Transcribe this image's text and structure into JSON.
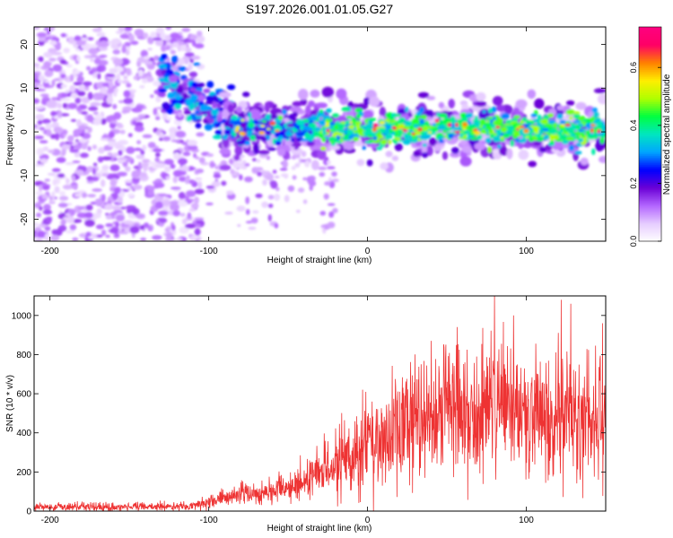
{
  "title": "S197.2026.001.01.05.G27",
  "chart_data": [
    {
      "type": "heatmap",
      "name": "spectrogram",
      "xlabel": "Height of straight line (km)",
      "ylabel": "Frequency (Hz)",
      "xlim": [
        -210,
        150
      ],
      "ylim": [
        -25,
        24
      ],
      "xticks": [
        -200,
        -100,
        0,
        100
      ],
      "yticks": [
        -20,
        -10,
        0,
        10,
        20
      ],
      "colorbar": {
        "label": "Normalized spectral amplitude",
        "range": [
          0.0,
          0.74
        ],
        "ticks": [
          0.0,
          0.2,
          0.4,
          0.6
        ],
        "tick_labels": [
          "0.0",
          "0.2",
          "0.4",
          "0.6"
        ],
        "colors": [
          "#ffffff",
          "#e6ccff",
          "#b366ff",
          "#6a00d6",
          "#0000ff",
          "#00a6ff",
          "#00e6c0",
          "#00ff40",
          "#b0ff00",
          "#ffee00",
          "#ff8000",
          "#ff0066",
          "#ff0080"
        ]
      },
      "description_regions": [
        {
          "x_range": [
            -210,
            -105
          ],
          "freq_range": [
            -25,
            24
          ],
          "level": "low (0.05–0.15)",
          "pattern": "scattered noise"
        },
        {
          "x_range": [
            -130,
            -90
          ],
          "freq_range": [
            5,
            14
          ],
          "level": "moderate (0.2–0.35)",
          "pattern": "ridge descending toward 0 Hz"
        },
        {
          "x_range": [
            -90,
            150
          ],
          "freq_range": [
            -4,
            4
          ],
          "level": "high (0.3–0.7)",
          "pattern": "band centered near 0–1 Hz"
        }
      ]
    },
    {
      "type": "line",
      "name": "snr",
      "xlabel": "Height of straight line (km)",
      "ylabel": "SNR (10 * v/v)",
      "xlim": [
        -210,
        150
      ],
      "ylim": [
        0,
        1100
      ],
      "xticks": [
        -200,
        -100,
        0,
        100
      ],
      "yticks": [
        0,
        200,
        400,
        600,
        800,
        1000
      ],
      "color": "#ee3333",
      "trend": {
        "x": [
          -210,
          -150,
          -110,
          -100,
          -90,
          -80,
          -70,
          -60,
          -50,
          -40,
          -30,
          -20,
          -10,
          0,
          10,
          20,
          30,
          40,
          50,
          60,
          70,
          80,
          90,
          100,
          110,
          120,
          130,
          140,
          150
        ],
        "y": [
          20,
          20,
          25,
          45,
          70,
          90,
          85,
          100,
          120,
          150,
          200,
          250,
          290,
          330,
          370,
          420,
          470,
          490,
          510,
          520,
          520,
          530,
          510,
          500,
          495,
          490,
          480,
          470,
          470
        ]
      },
      "peaks": [
        {
          "x": 80,
          "y": 1100
        },
        {
          "x": 92,
          "y": 1000
        },
        {
          "x": 122,
          "y": 1080
        },
        {
          "x": 128,
          "y": 1060
        },
        {
          "x": 148,
          "y": 960
        }
      ]
    }
  ]
}
